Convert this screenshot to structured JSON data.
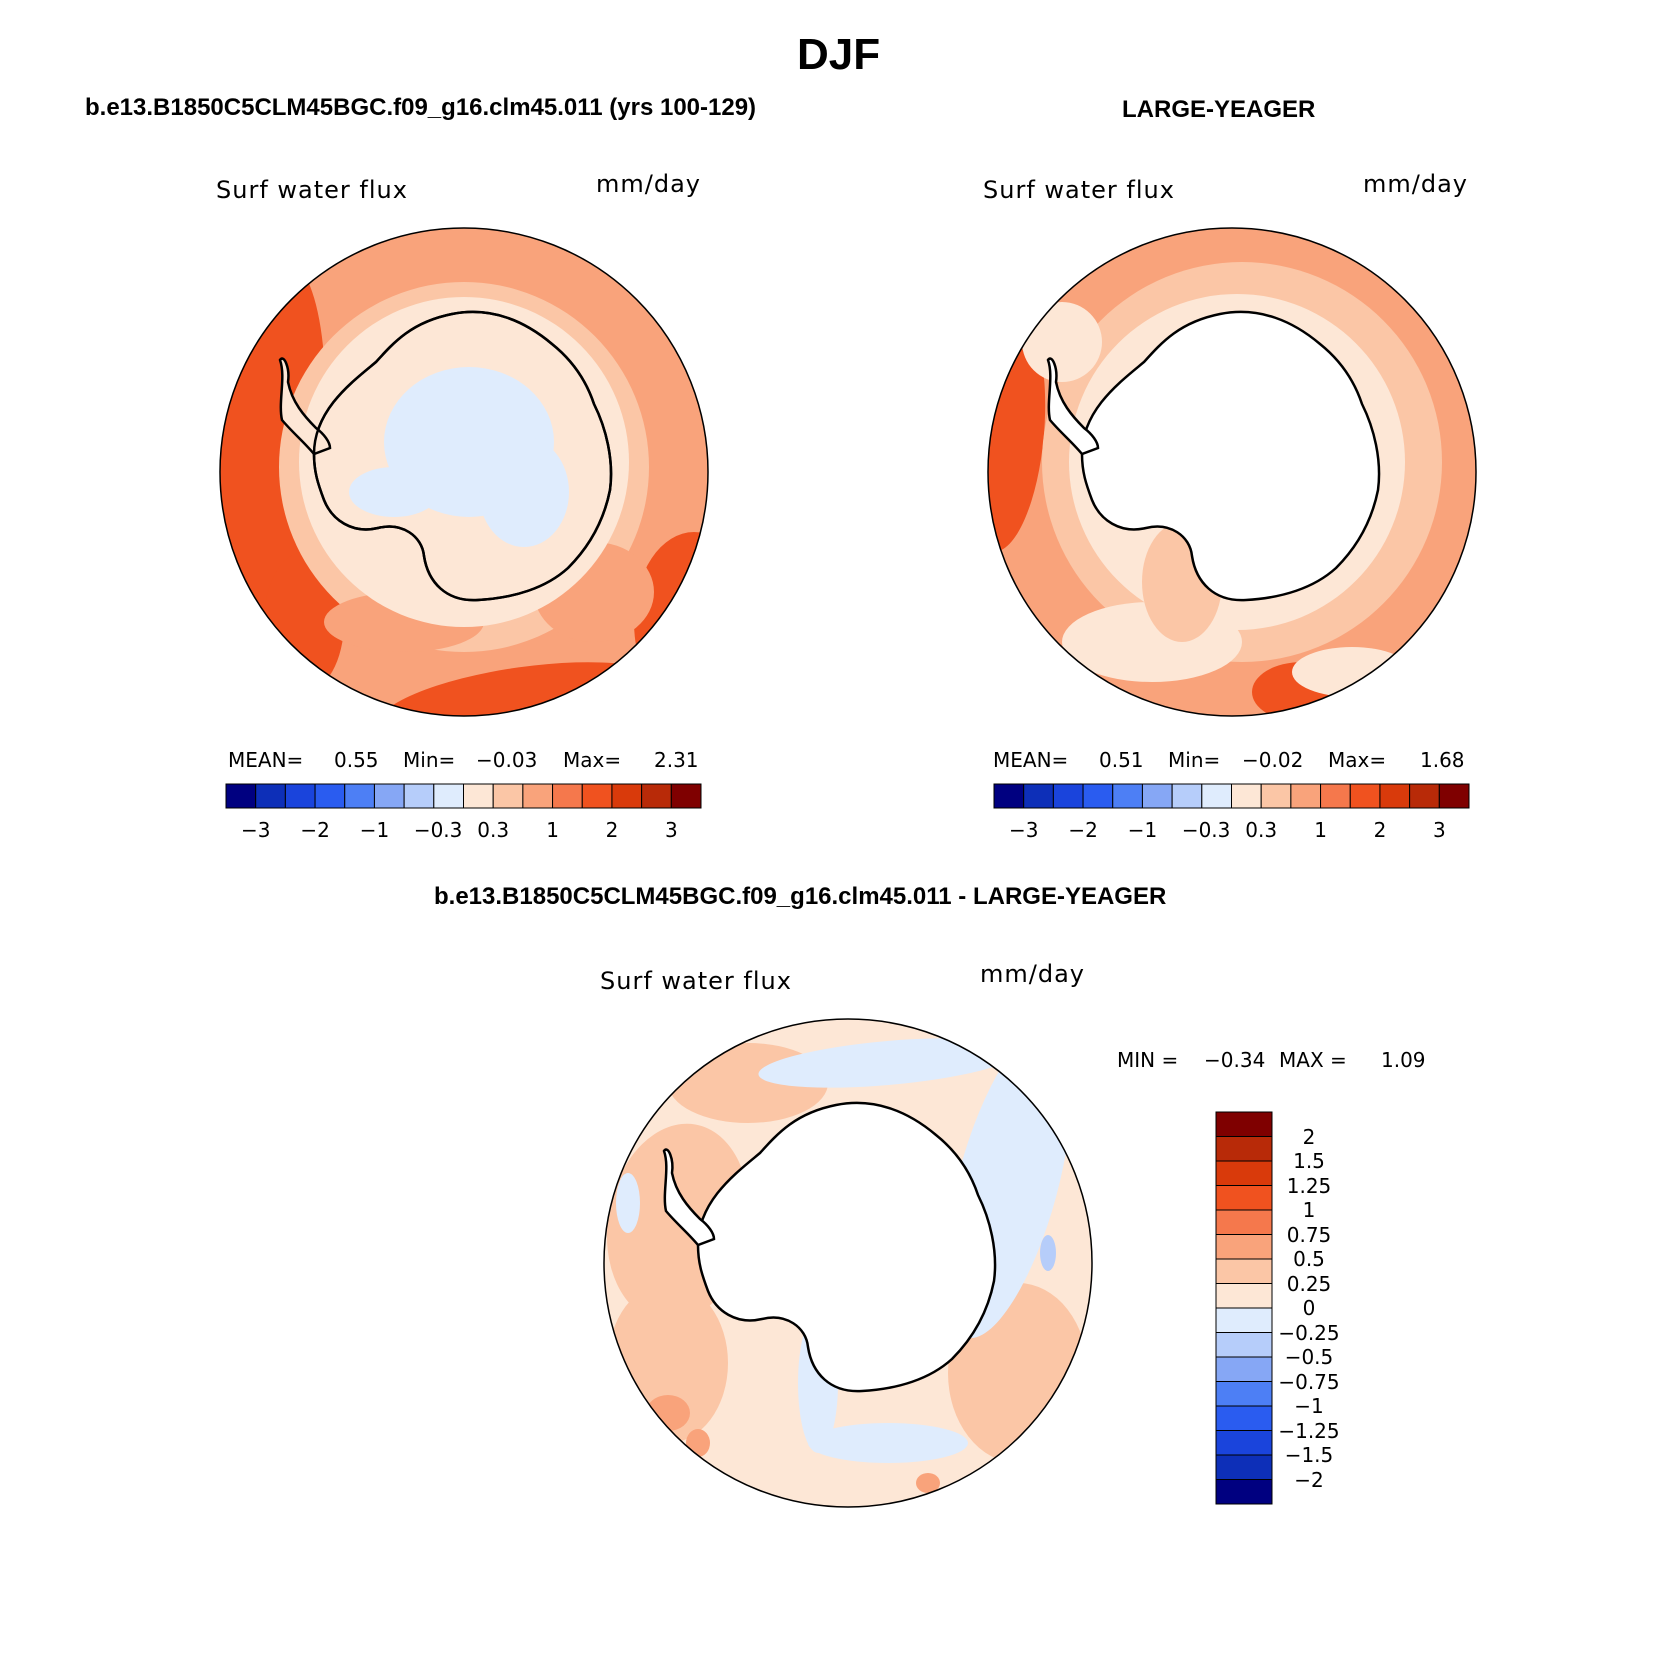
{
  "title": "DJF",
  "panels": [
    {
      "id": "model",
      "title": "b.e13.B1850C5CLM45BGC.f09_g16.clm45.011 (yrs 100-129)",
      "variable": "Surf water flux",
      "units": "mm/day",
      "stats": {
        "mean_label": "MEAN=",
        "mean": "0.55",
        "min_label": "Min=",
        "min": "−0.03",
        "max_label": "Max=",
        "max": "2.31"
      }
    },
    {
      "id": "obs",
      "title": "LARGE-YEAGER",
      "variable": "Surf water flux",
      "units": "mm/day",
      "stats": {
        "mean_label": "MEAN=",
        "mean": "0.51",
        "min_label": "Min=",
        "min": "−0.02",
        "max_label": "Max=",
        "max": "1.68"
      }
    },
    {
      "id": "diff",
      "title": "b.e13.B1850C5CLM45BGC.f09_g16.clm45.011 - LARGE-YEAGER",
      "variable": "Surf water flux",
      "units": "mm/day",
      "stats": {
        "min_label": "MIN =",
        "min": "−0.34",
        "max_label": "MAX =",
        "max": "1.09"
      }
    }
  ],
  "colorbar_main": {
    "colors": [
      "#000080",
      "#0d2fb8",
      "#1a44dc",
      "#2a5cf0",
      "#4d7ff5",
      "#86a7f5",
      "#b6cdfa",
      "#dfecfd",
      "#fde7d6",
      "#fbc6a6",
      "#f9a37b",
      "#f5784c",
      "#f0521f",
      "#d93a0b",
      "#b82a08",
      "#7f0000"
    ],
    "tick_labels": [
      "−3",
      "−2",
      "−1",
      "−0.3",
      "0.3",
      "1",
      "2",
      "3"
    ]
  },
  "colorbar_diff": {
    "colors_top_to_bottom": [
      "#7f0000",
      "#b82a08",
      "#d93a0b",
      "#f0521f",
      "#f5784c",
      "#f9a37b",
      "#fbc6a6",
      "#fde7d6",
      "#dfecfd",
      "#b6cdfa",
      "#86a7f5",
      "#4d7ff5",
      "#2a5cf0",
      "#1a44dc",
      "#0d2fb8",
      "#000080"
    ],
    "tick_labels": [
      "2",
      "1.5",
      "1.25",
      "1",
      "0.75",
      "0.5",
      "0.25",
      "0",
      "−0.25",
      "−0.5",
      "−0.75",
      "−1",
      "−1.25",
      "−1.5",
      "−2"
    ]
  },
  "map_colors": {
    "ocean_ring_outer_model": "#f0521f",
    "ocean_mid_model": "#f9a37b",
    "ocean_inner_model": "#fbc6a6",
    "coast_model": "#fde7d6",
    "interior_model": "#dfecfd",
    "ocean_outer_obs": "#f9a37b",
    "ocean_inner_obs": "#fbc6a6",
    "coast_obs": "#fde7d6",
    "land_obs": "#ffffff",
    "diff_base": "#fde7d6",
    "diff_warm": "#fbc6a6",
    "diff_warmer": "#f9a37b",
    "diff_cool": "#dfecfd",
    "diff_cooler": "#b6cdfa"
  }
}
